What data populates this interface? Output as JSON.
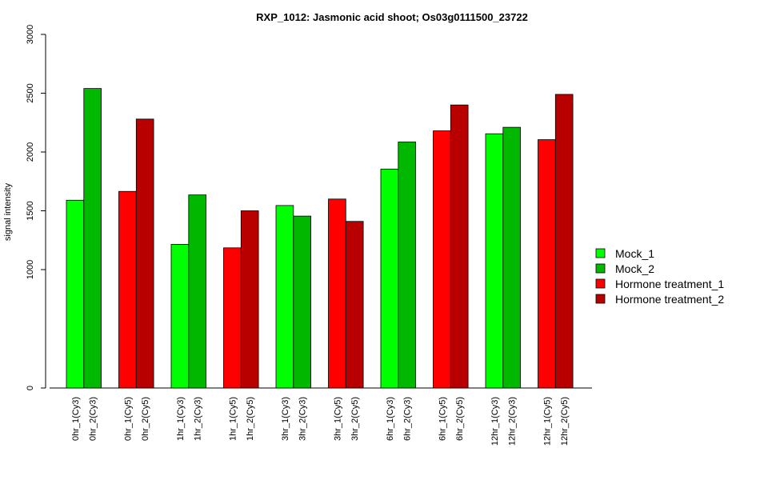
{
  "chart_data": {
    "type": "bar",
    "title": "RXP_1012: Jasmonic acid shoot; Os03g0111500_23722",
    "xlabel": "",
    "ylabel": "signal intensity",
    "ylim": [
      0,
      3000
    ],
    "yticks": [
      0,
      1000,
      1500,
      2000,
      2500,
      3000
    ],
    "y_axis_break": "0 to 1000 compressed",
    "grid": false,
    "legend_position": "right",
    "categories": [
      "0hr_1(Cy3)",
      "0hr_2(Cy3)",
      "0hr_1(Cy5)",
      "0hr_2(Cy5)",
      "1hr_1(Cy3)",
      "1hr_2(Cy3)",
      "1hr_1(Cy5)",
      "1hr_2(Cy5)",
      "3hr_1(Cy3)",
      "3hr_2(Cy3)",
      "3hr_1(Cy5)",
      "3hr_2(Cy5)",
      "6hr_1(Cy3)",
      "6hr_2(Cy3)",
      "6hr_1(Cy5)",
      "6hr_2(Cy5)",
      "12hr_1(Cy3)",
      "12hr_2(Cy3)",
      "12hr_1(Cy5)",
      "12hr_2(Cy5)"
    ],
    "values": [
      1590,
      2540,
      1665,
      2280,
      1215,
      1635,
      1185,
      1500,
      1545,
      1455,
      1600,
      1410,
      1855,
      2085,
      2180,
      2400,
      2155,
      2210,
      2105,
      2490
    ],
    "bar_series": [
      0,
      1,
      2,
      3,
      0,
      1,
      2,
      3,
      0,
      1,
      2,
      3,
      0,
      1,
      2,
      3,
      0,
      1,
      2,
      3
    ],
    "series": [
      {
        "name": "Mock_1",
        "color": "#00ff00"
      },
      {
        "name": "Mock_2",
        "color": "#00b800"
      },
      {
        "name": "Hormone treatment_1",
        "color": "#ff0000"
      },
      {
        "name": "Hormone treatment_2",
        "color": "#b80000"
      }
    ]
  }
}
